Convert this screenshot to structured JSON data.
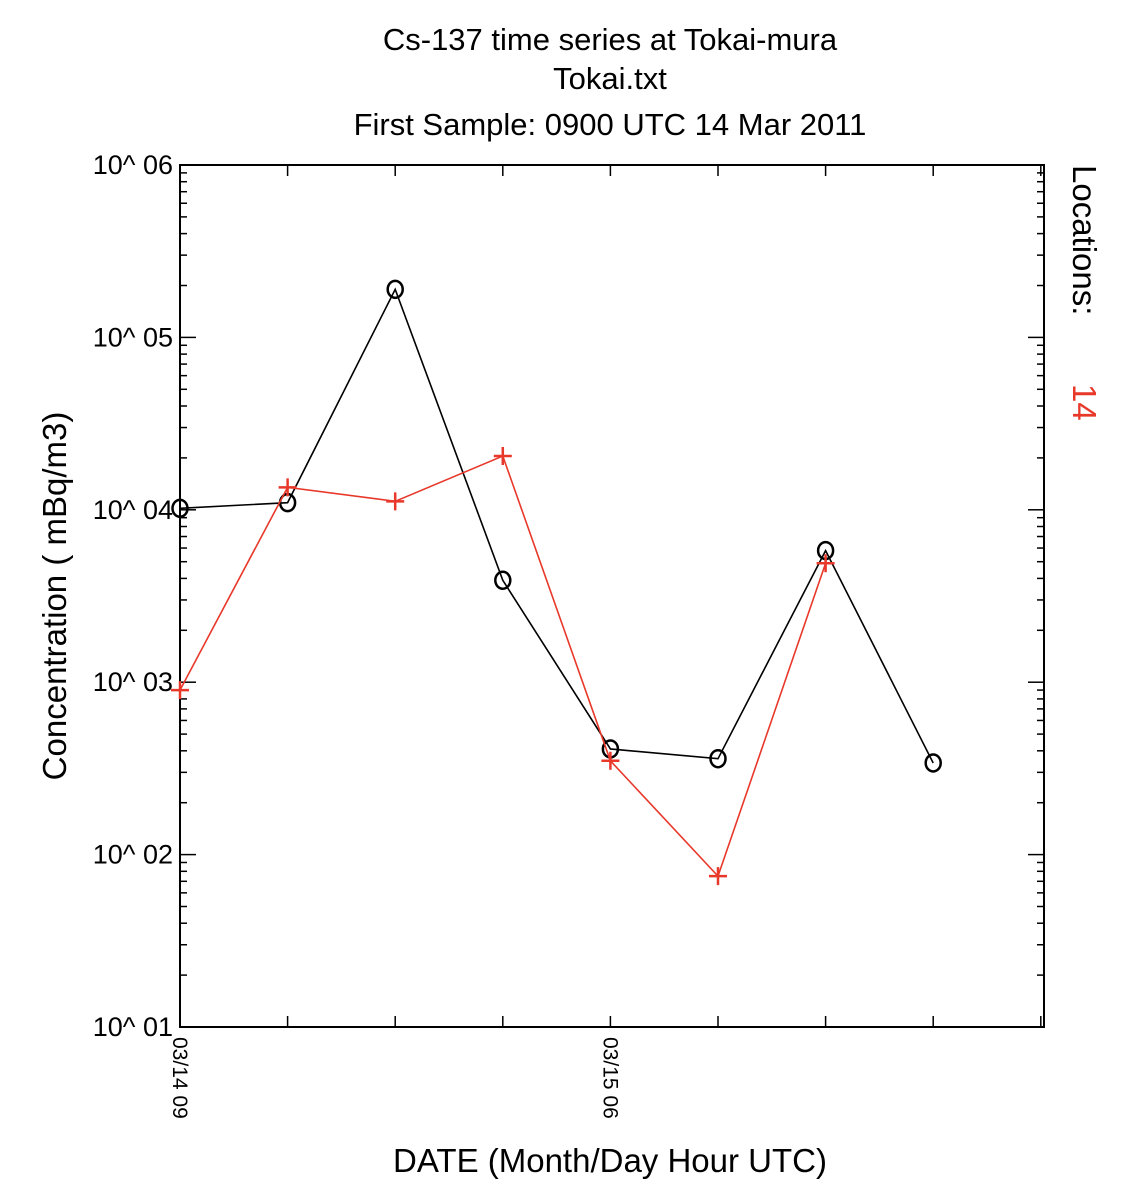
{
  "chart_data": {
    "type": "line",
    "title": "Cs-137 time series at Tokai-mura",
    "subtitle": "Tokai.txt",
    "subtitle2": "First Sample: 0900 UTC 14 Mar 2011",
    "xlabel": "DATE (Month/Day Hour UTC)",
    "ylabel": "Concentration ( mBq/m3)",
    "y_scale": "log",
    "ylim": [
      10,
      1000000
    ],
    "y_tick_labels": [
      "10^ 01",
      "10^ 02",
      "10^ 03",
      "10^ 04",
      "10^ 05",
      "10^ 06"
    ],
    "x_major_tick_labels": [
      "03/14 09",
      "03/15 06"
    ],
    "x_tick_count": 9,
    "x": [
      0,
      1,
      2,
      3,
      4,
      5,
      6,
      7
    ],
    "grid": false,
    "legend_label": "Locations:",
    "legend_value": "14",
    "series": [
      {
        "marker": "o",
        "color": "#000000",
        "values": [
          10200,
          11000,
          190000,
          3900,
          410,
          360,
          5800,
          340
        ]
      },
      {
        "marker": "+",
        "color": "#e8382a",
        "values": [
          900,
          13500,
          11200,
          20500,
          350,
          75,
          4900,
          null
        ]
      }
    ]
  }
}
